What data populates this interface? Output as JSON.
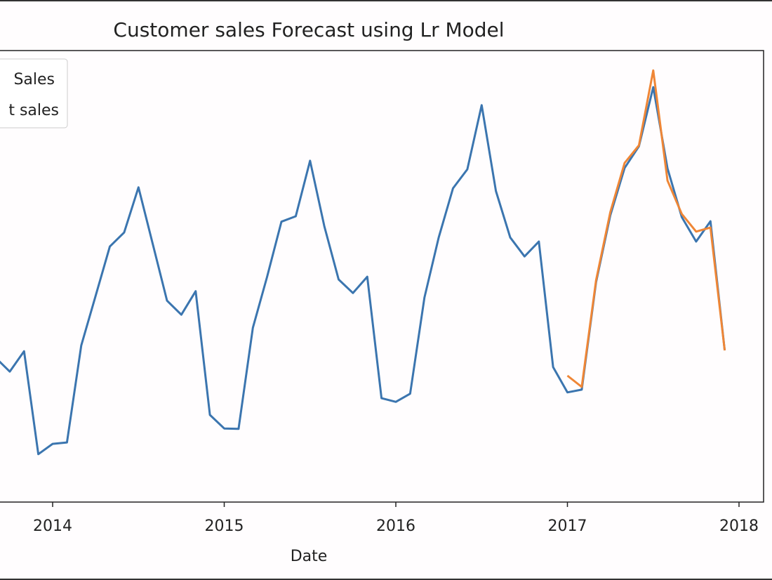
{
  "chart_data": {
    "type": "line",
    "title": "Customer sales Forecast using Lr Model",
    "xlabel": "Date",
    "ylabel": "",
    "y_units_note": "y-axis tick labels not visible; values are relative (0 = bottom of axes, 100 = top)",
    "ylim": [
      0,
      100
    ],
    "xlim": [
      "2013-09",
      "2018-02"
    ],
    "x_ticks": [
      "2014",
      "2015",
      "2016",
      "2017",
      "2018"
    ],
    "grid": false,
    "legend": {
      "placement": "top-left",
      "entries": [
        "Sales",
        "t sales"
      ]
    },
    "series": [
      {
        "name": "Sales",
        "color": "#3b75af",
        "x": [
          "2013-09",
          "2013-10",
          "2013-11",
          "2013-12",
          "2014-01",
          "2014-02",
          "2014-03",
          "2014-04",
          "2014-05",
          "2014-06",
          "2014-07",
          "2014-08",
          "2014-09",
          "2014-10",
          "2014-11",
          "2014-12",
          "2015-01",
          "2015-02",
          "2015-03",
          "2015-04",
          "2015-05",
          "2015-06",
          "2015-07",
          "2015-08",
          "2015-09",
          "2015-10",
          "2015-11",
          "2015-12",
          "2016-01",
          "2016-02",
          "2016-03",
          "2016-04",
          "2016-05",
          "2016-06",
          "2016-07",
          "2016-08",
          "2016-09",
          "2016-10",
          "2016-11",
          "2016-12",
          "2017-01",
          "2017-02",
          "2017-03",
          "2017-04",
          "2017-05",
          "2017-06",
          "2017-07",
          "2017-08",
          "2017-09",
          "2017-10",
          "2017-11",
          "2017-12"
        ],
        "values": [
          32.0,
          28.9,
          33.4,
          10.6,
          12.9,
          13.2,
          34.7,
          45.6,
          56.6,
          59.7,
          69.7,
          57.2,
          44.6,
          41.5,
          46.7,
          19.3,
          16.3,
          16.2,
          38.6,
          49.9,
          62.1,
          63.3,
          75.6,
          61.1,
          49.3,
          46.3,
          49.9,
          23.0,
          22.2,
          24.0,
          45.3,
          58.6,
          69.5,
          73.7,
          87.9,
          68.9,
          58.6,
          54.4,
          57.7,
          29.9,
          24.3,
          24.9,
          48.7,
          63.5,
          74.0,
          78.8,
          91.9,
          73.9,
          63.1,
          57.7,
          62.2,
          33.6
        ]
      },
      {
        "name": "t sales",
        "color": "#ef8636",
        "x": [
          "2017-01",
          "2017-02",
          "2017-03",
          "2017-04",
          "2017-05",
          "2017-06",
          "2017-07",
          "2017-08",
          "2017-09",
          "2017-10",
          "2017-11",
          "2017-12"
        ],
        "values": [
          28.0,
          25.5,
          49.1,
          64.2,
          75.1,
          79.0,
          95.6,
          71.2,
          63.8,
          59.9,
          60.8,
          33.6
        ]
      }
    ]
  }
}
